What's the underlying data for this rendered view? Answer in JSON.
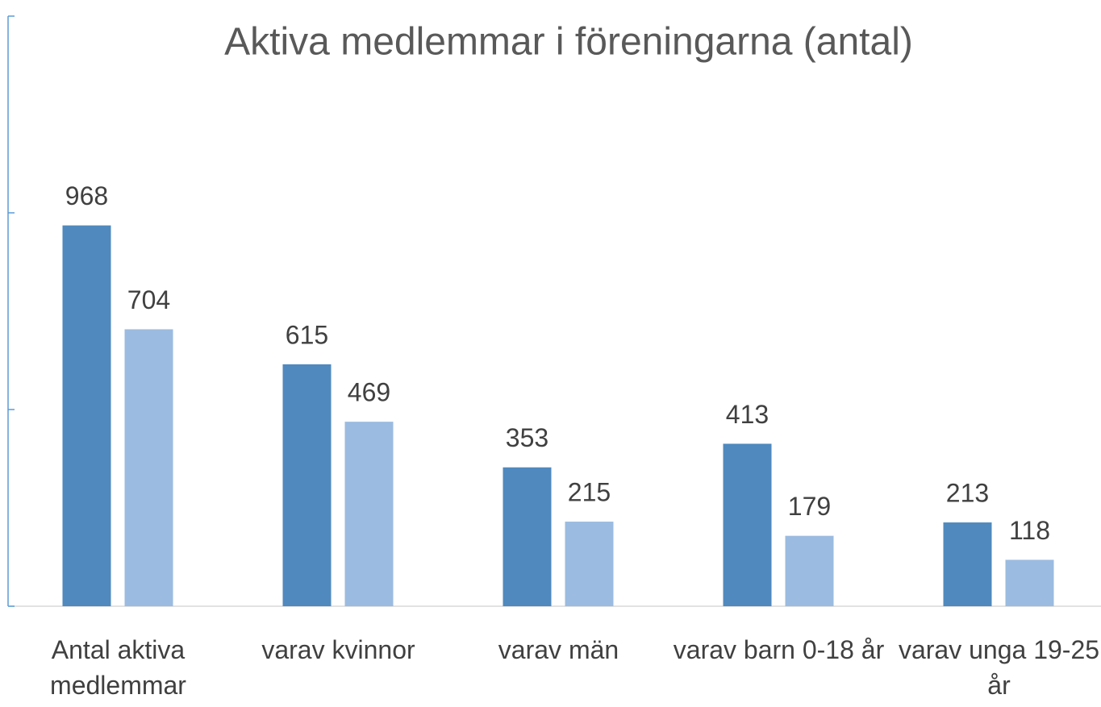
{
  "chart_data": {
    "type": "bar",
    "title": "Aktiva medlemmar i föreningarna (antal)",
    "categories": [
      "Antal aktiva medlemmar",
      "varav kvinnor",
      "varav män",
      "varav barn 0-18 år",
      "varav unga 19-25 år"
    ],
    "series": [
      {
        "color": "#4f89be",
        "values": [
          968,
          615,
          353,
          413,
          213
        ]
      },
      {
        "color": "#9bbbe0",
        "values": [
          704,
          469,
          215,
          179,
          118
        ]
      }
    ],
    "ylim": [
      0,
      1500
    ],
    "yticks": [
      0,
      500,
      1000,
      1500
    ]
  }
}
